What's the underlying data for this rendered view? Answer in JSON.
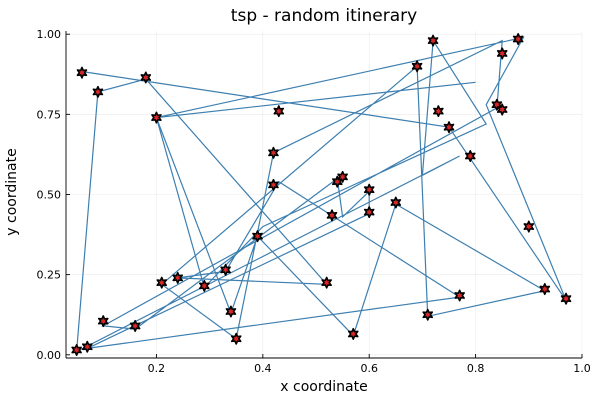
{
  "chart_data": {
    "type": "scatter",
    "title": "tsp - random itinerary",
    "xlabel": "x coordinate",
    "ylabel": "y coordinate",
    "xlim": [
      0.03,
      1.0
    ],
    "ylim": [
      -0.01,
      1.01
    ],
    "xticks": [
      0.2,
      0.4,
      0.6,
      0.8,
      1.0
    ],
    "xtick_labels": [
      "0.2",
      "0.4",
      "0.6",
      "0.8",
      "1.0"
    ],
    "yticks": [
      0.0,
      0.25,
      0.5,
      0.75,
      1.0
    ],
    "ytick_labels": [
      "0.00",
      "0.25",
      "0.50",
      "0.75",
      "1.00"
    ],
    "grid": true,
    "legend": false,
    "colors": {
      "route": "#3d7fb0",
      "marker_fill": "#d62728",
      "marker_edge": "#000000"
    },
    "route": {
      "x": [
        0.055,
        0.75,
        0.97,
        0.82,
        0.89,
        0.2,
        0.34,
        0.39,
        0.57,
        0.65,
        0.93,
        0.71,
        0.69,
        0.21,
        0.35,
        0.42,
        0.85,
        0.84,
        0.1,
        0.16,
        0.54,
        0.55,
        0.6,
        0.6,
        0.07,
        0.77,
        0.43,
        0.33,
        0.24,
        0.52,
        0.18,
        0.09,
        0.05,
        0.77,
        0.7,
        0.72,
        0.82,
        0.4,
        0.29,
        0.2,
        0.8
      ],
      "y": [
        0.885,
        0.71,
        0.17,
        0.78,
        0.99,
        0.74,
        0.13,
        0.37,
        0.06,
        0.47,
        0.2,
        0.12,
        0.9,
        0.22,
        0.05,
        0.63,
        0.98,
        0.77,
        0.09,
        0.08,
        0.55,
        0.43,
        0.51,
        0.44,
        0.02,
        0.18,
        0.54,
        0.26,
        0.24,
        0.22,
        0.86,
        0.82,
        0.01,
        0.62,
        0.56,
        0.98,
        0.72,
        0.4,
        0.21,
        0.74,
        0.85
      ]
    },
    "points": {
      "x": [
        0.05,
        0.07,
        0.09,
        0.1,
        0.16,
        0.18,
        0.2,
        0.21,
        0.24,
        0.29,
        0.33,
        0.34,
        0.35,
        0.39,
        0.42,
        0.43,
        0.52,
        0.54,
        0.55,
        0.57,
        0.6,
        0.6,
        0.65,
        0.69,
        0.71,
        0.72,
        0.73,
        0.75,
        0.77,
        0.79,
        0.84,
        0.85,
        0.85,
        0.88,
        0.9,
        0.93,
        0.97,
        0.42,
        0.53,
        0.06
      ],
      "y": [
        0.015,
        0.025,
        0.82,
        0.105,
        0.09,
        0.865,
        0.74,
        0.225,
        0.24,
        0.215,
        0.265,
        0.135,
        0.05,
        0.37,
        0.53,
        0.76,
        0.225,
        0.54,
        0.555,
        0.065,
        0.515,
        0.445,
        0.475,
        0.9,
        0.125,
        0.98,
        0.76,
        0.71,
        0.185,
        0.62,
        0.78,
        0.94,
        0.765,
        0.985,
        0.4,
        0.205,
        0.175,
        0.63,
        0.435,
        0.88
      ]
    }
  }
}
